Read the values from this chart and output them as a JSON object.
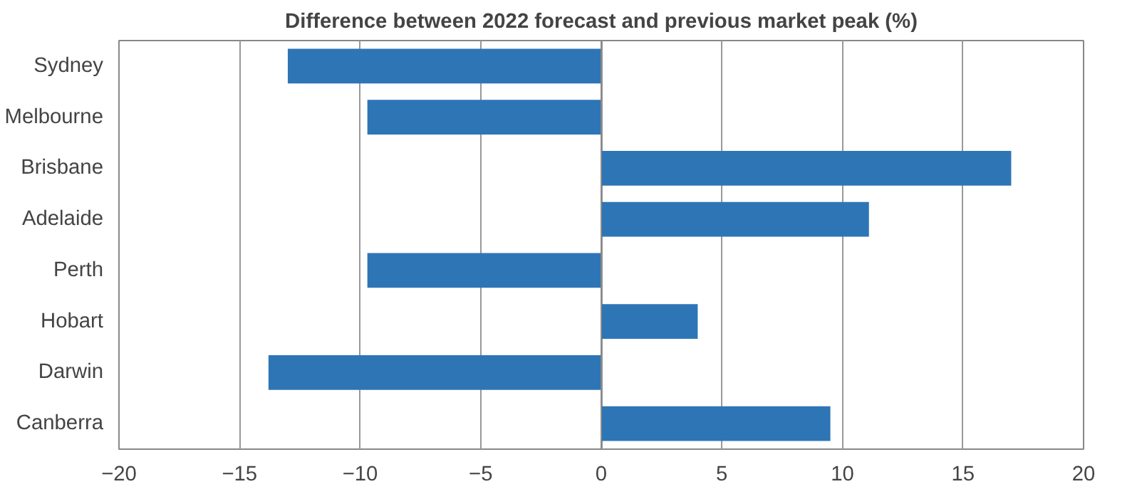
{
  "chart_data": {
    "type": "bar",
    "orientation": "horizontal",
    "title": "Difference between 2022 forecast and previous market peak (%)",
    "categories": [
      "Sydney",
      "Melbourne",
      "Brisbane",
      "Adelaide",
      "Perth",
      "Hobart",
      "Darwin",
      "Canberra"
    ],
    "values": [
      -13,
      -9.7,
      17,
      11.1,
      -9.7,
      4,
      -13.8,
      9.5
    ],
    "color": "#2e75b6",
    "xlim": [
      -20,
      20
    ],
    "xticks": [
      -20,
      -15,
      -10,
      -5,
      0,
      5,
      10,
      15,
      20
    ],
    "grid": "x"
  }
}
